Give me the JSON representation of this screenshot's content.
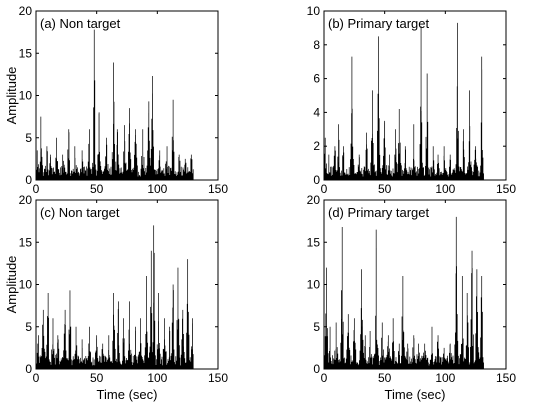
{
  "chart_data": [
    {
      "type": "line",
      "panel_label": "(a) Non target",
      "ylabel": "Amplitude",
      "xlabel": "",
      "xlim": [
        0,
        150
      ],
      "ylim": [
        0,
        20
      ],
      "xticks": [
        0,
        50,
        100,
        150
      ],
      "yticks": [
        0,
        5,
        10,
        15,
        20
      ],
      "grid": false,
      "signal_end": 130,
      "series": [
        {
          "values": [
            [
              1,
              3.5
            ],
            [
              4,
              7.5
            ],
            [
              9,
              4
            ],
            [
              12,
              3
            ],
            [
              17,
              5
            ],
            [
              22,
              3
            ],
            [
              27,
              6
            ],
            [
              32,
              4
            ],
            [
              38,
              3.5
            ],
            [
              44,
              6
            ],
            [
              48,
              17.8
            ],
            [
              52,
              8
            ],
            [
              58,
              5
            ],
            [
              64,
              13.9
            ],
            [
              67,
              6
            ],
            [
              73,
              6.5
            ],
            [
              77,
              8.5
            ],
            [
              82,
              6
            ],
            [
              88,
              6
            ],
            [
              93,
              9.3
            ],
            [
              96,
              12.3
            ],
            [
              102,
              3.5
            ],
            [
              108,
              4
            ],
            [
              113,
              9.5
            ],
            [
              118,
              3
            ],
            [
              123,
              2.5
            ],
            [
              128,
              3
            ]
          ]
        }
      ]
    },
    {
      "type": "line",
      "panel_label": "(b) Primary target",
      "ylabel": "",
      "xlabel": "",
      "xlim": [
        0,
        150
      ],
      "ylim": [
        0,
        10
      ],
      "xticks": [
        0,
        50,
        100,
        150
      ],
      "yticks": [
        0,
        2,
        4,
        6,
        8,
        10
      ],
      "grid": false,
      "signal_end": 132,
      "series": [
        {
          "values": [
            [
              1,
              2.5
            ],
            [
              4,
              1.5
            ],
            [
              9,
              2
            ],
            [
              12,
              3.3
            ],
            [
              16,
              2
            ],
            [
              23,
              7.3
            ],
            [
              29,
              1.5
            ],
            [
              35,
              2.8
            ],
            [
              40,
              5.3
            ],
            [
              45,
              8.5
            ],
            [
              50,
              3.5
            ],
            [
              54,
              1.5
            ],
            [
              59,
              3
            ],
            [
              62,
              4.2
            ],
            [
              67,
              2
            ],
            [
              74,
              3.3
            ],
            [
              80,
              9.1
            ],
            [
              85,
              6.3
            ],
            [
              90,
              2
            ],
            [
              94,
              1.5
            ],
            [
              99,
              2
            ],
            [
              104,
              1.5
            ],
            [
              110,
              9.3
            ],
            [
              115,
              3
            ],
            [
              120,
              5.3
            ],
            [
              125,
              2
            ],
            [
              130,
              7.3
            ]
          ]
        }
      ]
    },
    {
      "type": "line",
      "panel_label": "(c) Non target",
      "ylabel": "Amplitude",
      "xlabel": "Time (sec)",
      "xlim": [
        0,
        150
      ],
      "ylim": [
        0,
        20
      ],
      "xticks": [
        0,
        50,
        100,
        150
      ],
      "yticks": [
        0,
        5,
        10,
        15,
        20
      ],
      "grid": false,
      "signal_end": 130,
      "series": [
        {
          "values": [
            [
              2,
              4
            ],
            [
              6,
              7
            ],
            [
              10,
              9
            ],
            [
              14,
              6
            ],
            [
              18,
              4
            ],
            [
              24,
              7
            ],
            [
              28,
              9.3
            ],
            [
              33,
              5
            ],
            [
              38,
              3.5
            ],
            [
              44,
              5
            ],
            [
              50,
              4
            ],
            [
              55,
              3
            ],
            [
              60,
              4
            ],
            [
              64,
              9
            ],
            [
              68,
              8
            ],
            [
              72,
              6
            ],
            [
              77,
              8
            ],
            [
              82,
              5
            ],
            [
              86,
              6
            ],
            [
              91,
              11
            ],
            [
              95,
              14
            ],
            [
              97,
              17
            ],
            [
              101,
              9
            ],
            [
              106,
              6
            ],
            [
              110,
              5
            ],
            [
              113,
              10
            ],
            [
              117,
              12
            ],
            [
              121,
              7
            ],
            [
              125,
              13
            ],
            [
              129,
              6
            ]
          ]
        }
      ]
    },
    {
      "type": "line",
      "panel_label": "(d) Primary target",
      "ylabel": "",
      "xlabel": "Time (sec)",
      "xlim": [
        0,
        150
      ],
      "ylim": [
        0,
        20
      ],
      "xticks": [
        0,
        50,
        100,
        150
      ],
      "yticks": [
        0,
        5,
        10,
        15,
        20
      ],
      "grid": false,
      "signal_end": 132,
      "series": [
        {
          "values": [
            [
              2,
              12
            ],
            [
              5,
              5
            ],
            [
              10,
              5.5
            ],
            [
              15,
              16.8
            ],
            [
              20,
              6.5
            ],
            [
              25,
              6
            ],
            [
              31,
              11.8
            ],
            [
              34,
              4
            ],
            [
              38,
              4.5
            ],
            [
              43,
              16.5
            ],
            [
              48,
              5.5
            ],
            [
              53,
              4
            ],
            [
              57,
              6
            ],
            [
              62,
              3
            ],
            [
              65,
              11
            ],
            [
              69,
              3
            ],
            [
              74,
              4
            ],
            [
              78,
              3
            ],
            [
              83,
              3
            ],
            [
              89,
              5
            ],
            [
              94,
              4
            ],
            [
              99,
              2.5
            ],
            [
              104,
              3
            ],
            [
              109,
              18
            ],
            [
              114,
              11
            ],
            [
              118,
              9
            ],
            [
              122,
              14
            ],
            [
              126,
              11.8
            ],
            [
              130,
              11
            ]
          ]
        }
      ]
    }
  ]
}
